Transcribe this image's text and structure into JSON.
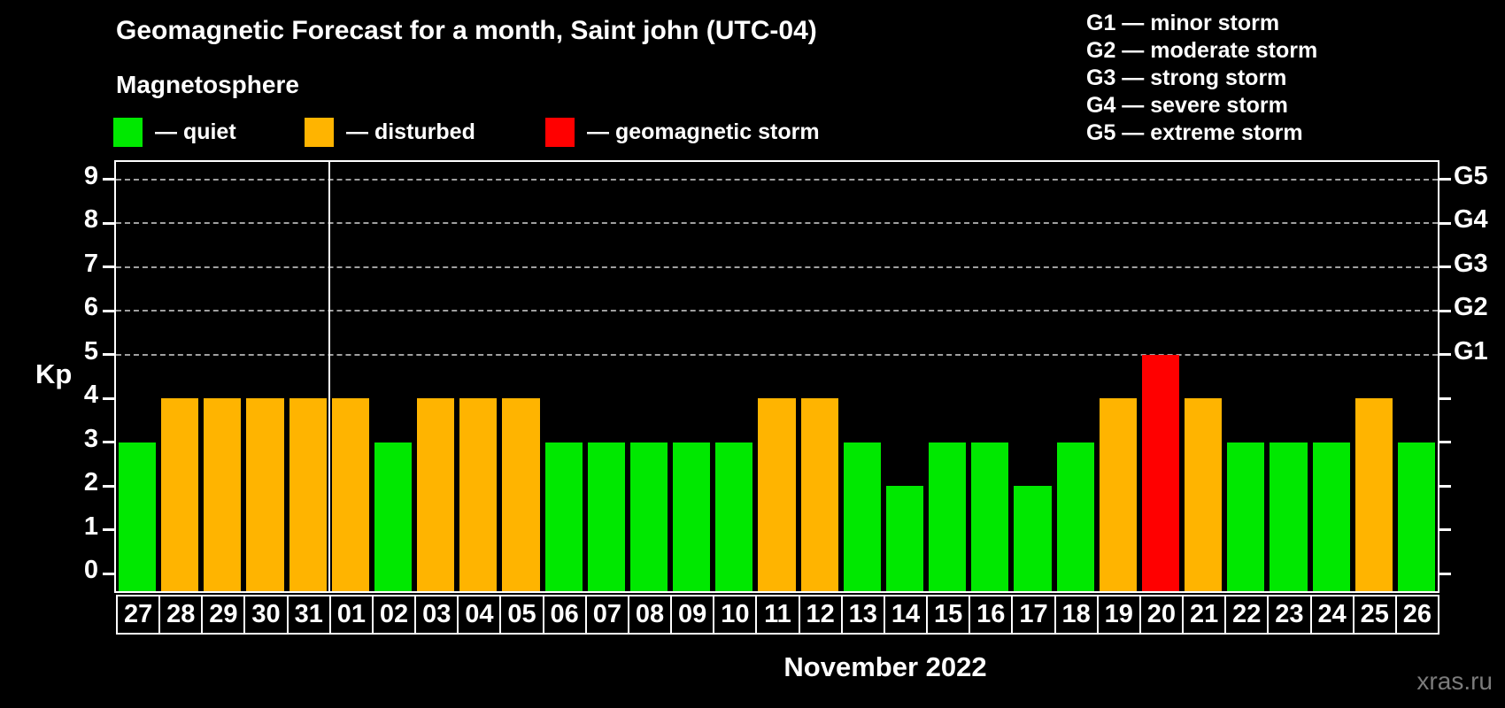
{
  "title": "Geomagnetic Forecast for a month, Saint john (UTC-04)",
  "subtitle": "Magnetosphere",
  "legend": {
    "items": [
      {
        "key": "quiet",
        "label": "— quiet",
        "color": "#00e800"
      },
      {
        "key": "disturbed",
        "label": "— disturbed",
        "color": "#ffb400"
      },
      {
        "key": "storm",
        "label": "— geomagnetic storm",
        "color": "#ff0000"
      }
    ]
  },
  "g_legend": [
    "G1 — minor storm",
    "G2 — moderate storm",
    "G3 — strong storm",
    "G4 — severe storm",
    "G5 — extreme storm"
  ],
  "chart_data": {
    "type": "bar",
    "title": "Geomagnetic Forecast for a month, Saint john (UTC-04)",
    "xlabel": "November 2022",
    "ylabel": "Kp",
    "categories": [
      "27",
      "28",
      "29",
      "30",
      "31",
      "01",
      "02",
      "03",
      "04",
      "05",
      "06",
      "07",
      "08",
      "09",
      "10",
      "11",
      "12",
      "13",
      "14",
      "15",
      "16",
      "17",
      "18",
      "19",
      "20",
      "21",
      "22",
      "23",
      "24",
      "25",
      "26"
    ],
    "values": [
      3,
      4,
      4,
      4,
      4,
      4,
      3,
      4,
      4,
      4,
      3,
      3,
      3,
      3,
      3,
      4,
      4,
      3,
      2,
      3,
      3,
      2,
      3,
      4,
      5,
      4,
      3,
      3,
      3,
      4,
      3
    ],
    "statuses": [
      "quiet",
      "disturbed",
      "disturbed",
      "disturbed",
      "disturbed",
      "disturbed",
      "quiet",
      "disturbed",
      "disturbed",
      "disturbed",
      "quiet",
      "quiet",
      "quiet",
      "quiet",
      "quiet",
      "disturbed",
      "disturbed",
      "quiet",
      "quiet",
      "quiet",
      "quiet",
      "quiet",
      "quiet",
      "disturbed",
      "storm",
      "disturbed",
      "quiet",
      "quiet",
      "quiet",
      "disturbed",
      "quiet"
    ],
    "status_colors": {
      "quiet": "#00e800",
      "disturbed": "#ffb400",
      "storm": "#ff0000"
    },
    "ylim": [
      -0.4,
      9.4
    ],
    "yticks": [
      0,
      1,
      2,
      3,
      4,
      5,
      6,
      7,
      8,
      9
    ],
    "gridline_values": [
      5,
      6,
      7,
      8,
      9
    ],
    "grid_style": "dashed horizontal gray lines at G-storm levels only",
    "right_axis": [
      {
        "value": 5,
        "label": "G1"
      },
      {
        "value": 6,
        "label": "G2"
      },
      {
        "value": 7,
        "label": "G3"
      },
      {
        "value": 8,
        "label": "G4"
      },
      {
        "value": 9,
        "label": "G5"
      }
    ],
    "month_separator_after_index": 4,
    "legend_position": "top-left above plot"
  },
  "watermark": "xras.ru",
  "colors": {
    "background": "#000000",
    "text": "#ffffff",
    "axis": "#ffffff",
    "gridline": "#a0a0a0",
    "quiet": "#00e800",
    "disturbed": "#ffb400",
    "storm": "#ff0000",
    "watermark": "#7b7b7b"
  }
}
